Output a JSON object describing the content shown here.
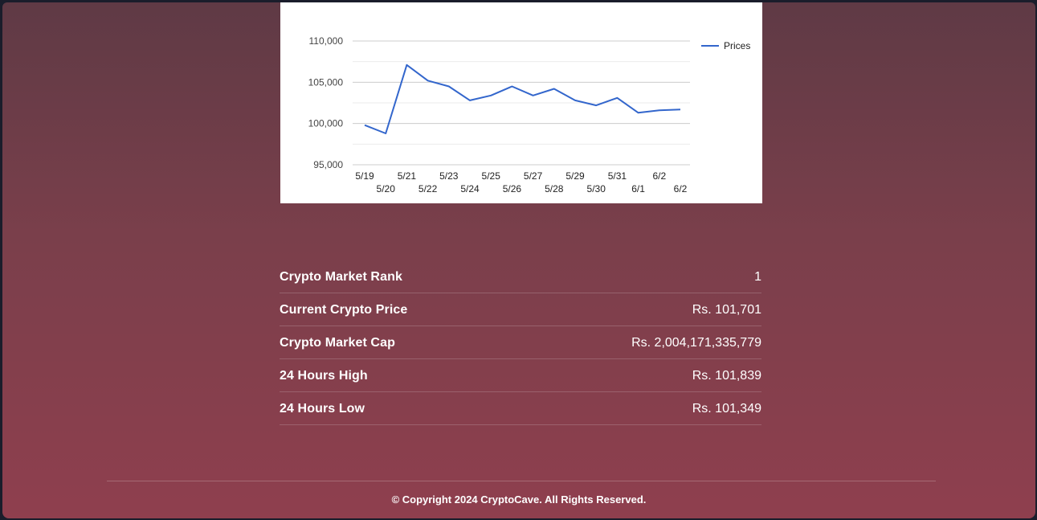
{
  "chart_data": {
    "type": "line",
    "legend": {
      "position": "top-right"
    },
    "ylim": [
      95000,
      110000
    ],
    "y_ticks": [
      "95,000",
      "100,000",
      "105,000",
      "110,000"
    ],
    "y_tick_values": [
      95000,
      100000,
      105000,
      110000
    ],
    "x_labels_top": [
      "5/19",
      "5/21",
      "5/23",
      "5/25",
      "5/27",
      "5/29",
      "5/31",
      "6/2"
    ],
    "x_labels_bottom": [
      "5/20",
      "5/22",
      "5/24",
      "5/26",
      "5/28",
      "5/30",
      "6/1",
      "6/2"
    ],
    "series": [
      {
        "name": "Prices",
        "color": "#3366cc",
        "x": [
          "5/19",
          "5/20",
          "5/21",
          "5/22",
          "5/23",
          "5/24",
          "5/25",
          "5/26",
          "5/27",
          "5/28",
          "5/29",
          "5/30",
          "5/31",
          "6/1",
          "6/2",
          "6/2"
        ],
        "values": [
          99800,
          98800,
          107100,
          105200,
          104500,
          102800,
          103400,
          104500,
          103400,
          104200,
          102800,
          102200,
          103100,
          101300,
          101600,
          101700
        ]
      }
    ],
    "grid": true
  },
  "stats": [
    {
      "label": "Crypto Market Rank",
      "value": "1"
    },
    {
      "label": "Current Crypto Price",
      "value": "Rs. 101,701"
    },
    {
      "label": "Crypto Market Cap",
      "value": "Rs. 2,004,171,335,779"
    },
    {
      "label": "24 Hours High",
      "value": "Rs. 101,839"
    },
    {
      "label": "24 Hours Low",
      "value": "Rs. 101,349"
    }
  ],
  "footer": {
    "copyright": "© Copyright 2024 CryptoCave. All Rights Reserved."
  }
}
